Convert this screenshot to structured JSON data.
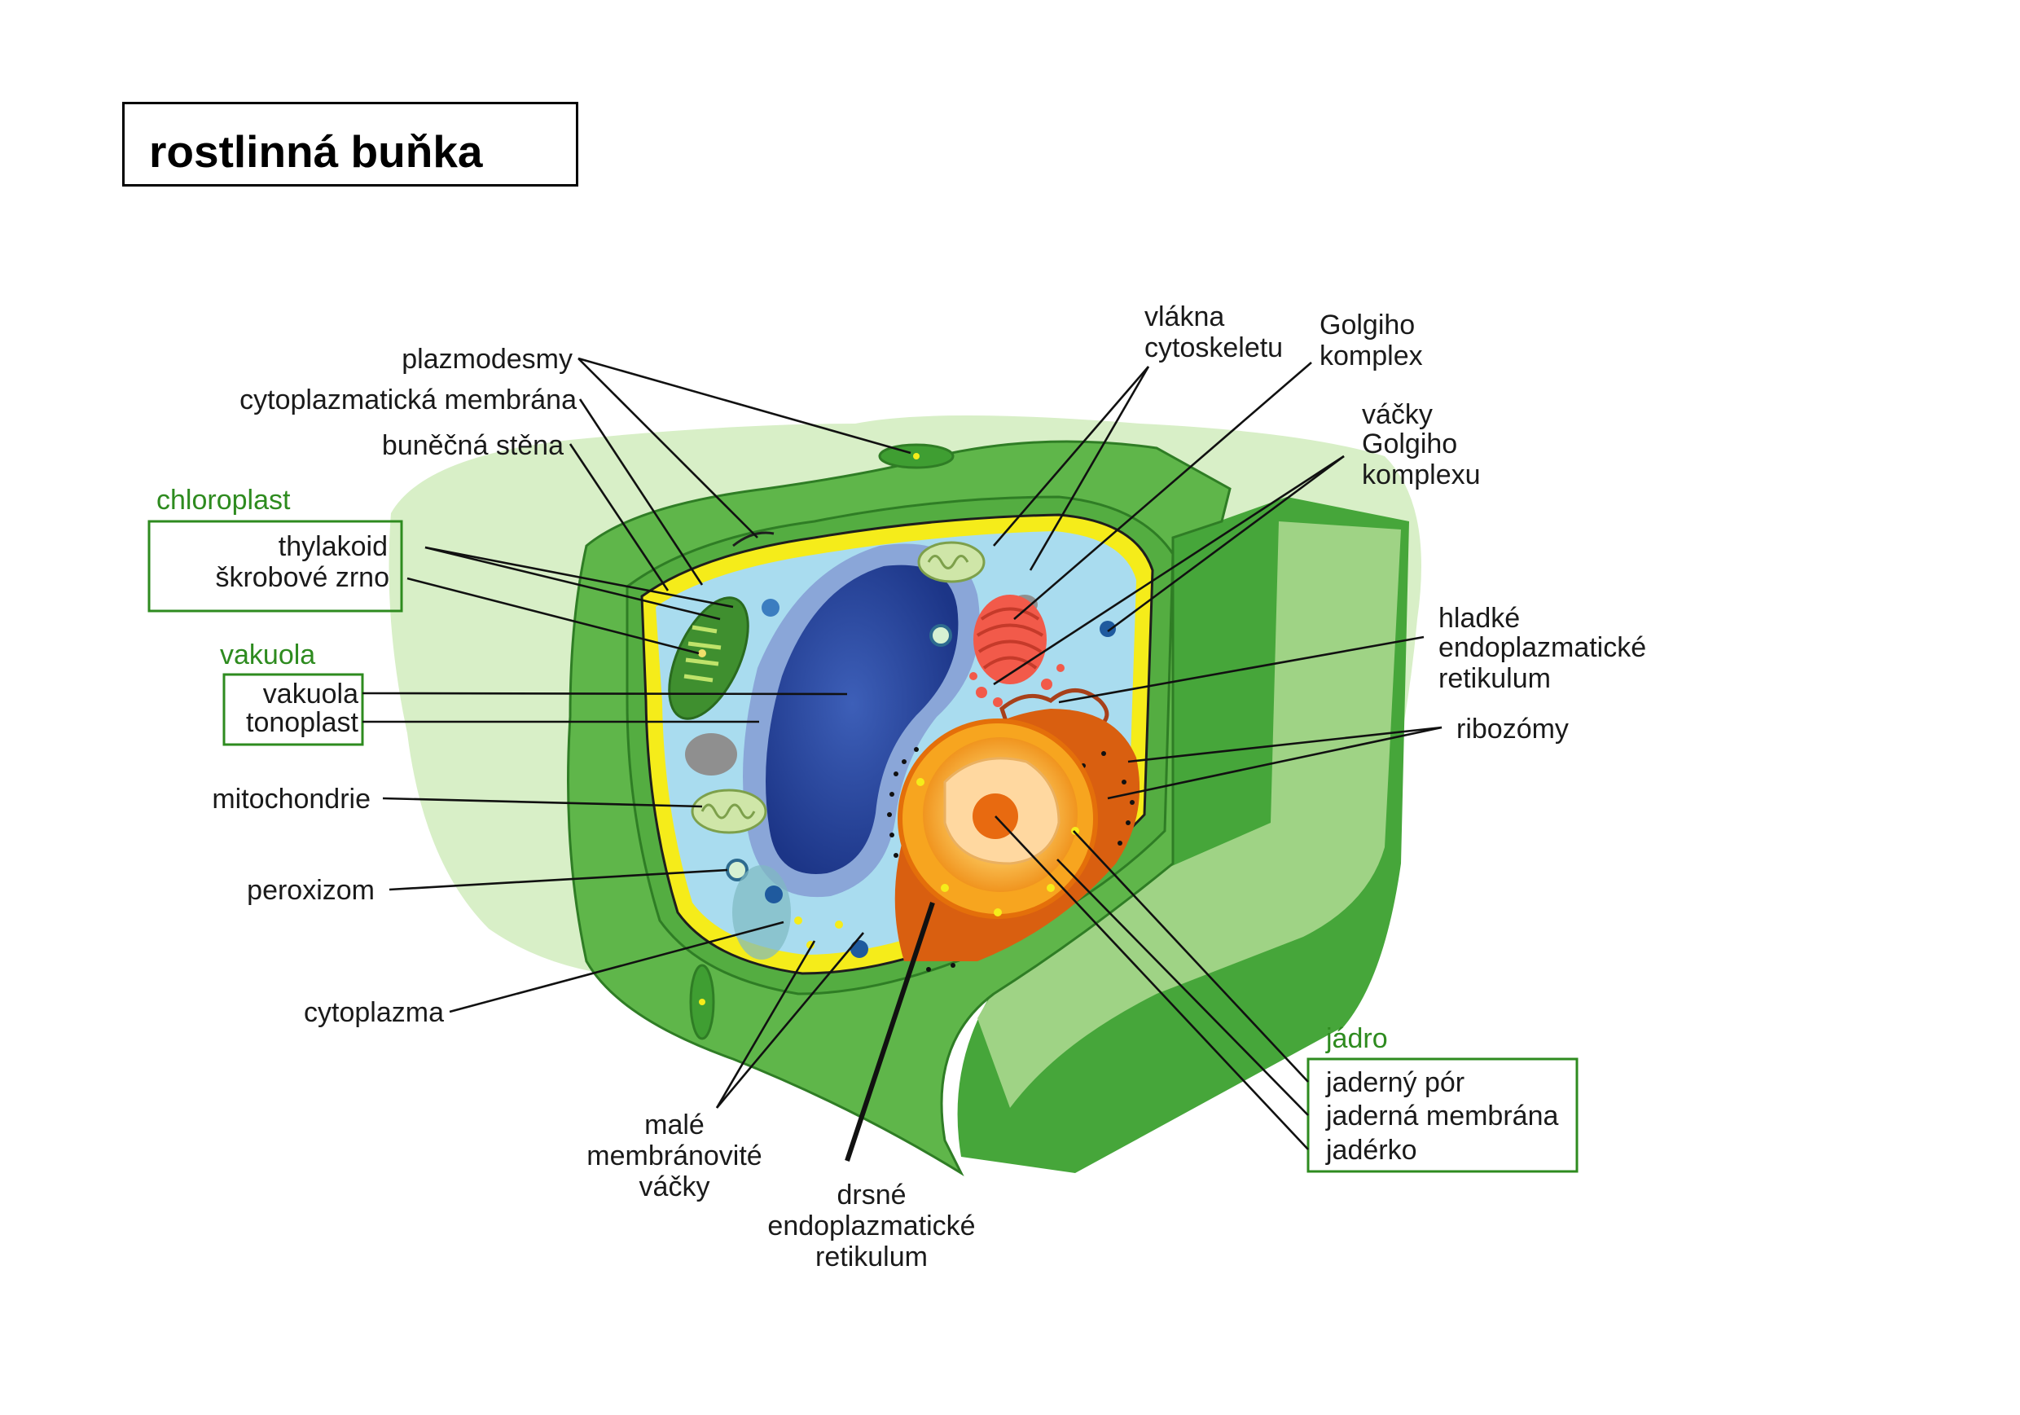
{
  "title": "rostlinná buňka",
  "groups": {
    "chloroplast": "chloroplast",
    "vakuola": "vakuola",
    "jadro": "jádro"
  },
  "labels": {
    "plazmodesmy": "plazmodesmy",
    "cytoplazmaticka_membrana": "cytoplazmatická membrána",
    "bunecna_stena": "buněčná stěna",
    "thylakoid": "thylakoid",
    "skrobove_zrno": "škrobové zrno",
    "vakuola": "vakuola",
    "tonoplast": "tonoplast",
    "mitochondrie": "mitochondrie",
    "peroxizom": "peroxizom",
    "cytoplazma": "cytoplazma",
    "male_vacky": [
      "malé",
      "membránovité",
      "váčky"
    ],
    "drsne_er": [
      "drsné",
      "endoplazmatické",
      "retikulum"
    ],
    "vlakna": [
      "vlákna",
      "cytoskeletu"
    ],
    "golgiho_komplex": [
      "Golgiho",
      "komplex"
    ],
    "vacky_golgiho": [
      "váčky",
      "Golgiho",
      "komplexu"
    ],
    "hladke_er": [
      "hladké",
      "endoplazmatické",
      "retikulum"
    ],
    "ribozomy": "ribozómy",
    "jaderny_por": "jaderný pór",
    "jaderna_membrana": "jaderná membrána",
    "jaderko": "jadérko"
  },
  "colors": {
    "wall_dark": "#3f9e32",
    "wall_mid": "#67bb4f",
    "wall_light": "#a5d98a",
    "halo": "#d4edc2",
    "membrane": "#f5ec1a",
    "cytoplasm": "#a9dcef",
    "vacuole": "#2c4a9e",
    "nucleus": "#f39a17",
    "golgi": "#f25a4a",
    "group_label": "#2e8b1f"
  }
}
